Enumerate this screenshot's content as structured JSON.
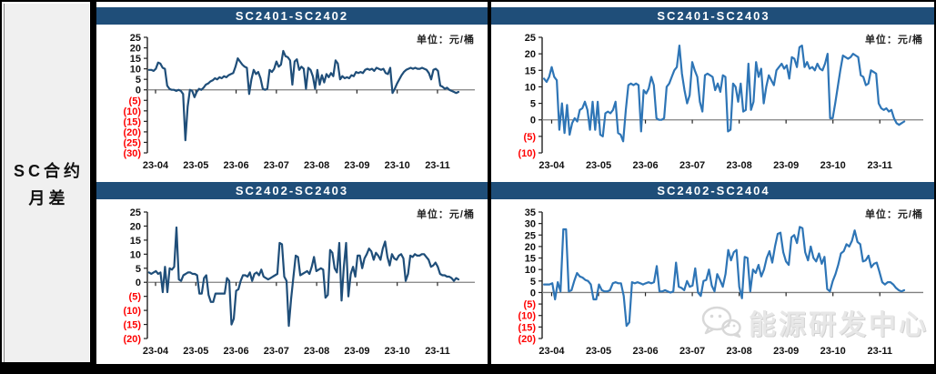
{
  "sidebar": {
    "line1": "SC合约",
    "line2": "月差"
  },
  "colors": {
    "header_bg": "#1F4E79",
    "dark_series": "#1F4E79",
    "light_series": "#2E75B6",
    "negative_label": "#FF0000",
    "zero_line": "#808080",
    "axis": "#222222",
    "sidebar_bg": "#F0F0F0",
    "frame": "#000000"
  },
  "watermark": {
    "icon": "wechat-icon",
    "text": "能源研发中心"
  },
  "chart_data": [
    {
      "type": "line",
      "title": "SC2401-SC2402",
      "unit": "单位：元/桶",
      "color": "#1F4E79",
      "ylim": [
        -30,
        25
      ],
      "y_step": 5,
      "grid": "zero-line-only",
      "legend": "none",
      "categories": [
        "23-04",
        "23-05",
        "23-06",
        "23-07",
        "23-08",
        "23-09",
        "23-10",
        "23-11"
      ],
      "values": [
        9.5,
        9.5,
        9,
        10,
        13,
        12.5,
        10.5,
        10,
        2,
        0.5,
        0,
        0,
        -0.5,
        0,
        -0.5,
        -2,
        -24,
        -8,
        0,
        -0.5,
        -3.5,
        -1,
        0.5,
        0,
        1,
        2.5,
        3,
        4,
        4.5,
        5.5,
        5,
        6,
        5.5,
        6.5,
        6,
        7,
        7.5,
        8,
        11,
        15,
        13.5,
        12,
        11,
        10.5,
        -2,
        5,
        9.5,
        7.5,
        8.5,
        5.5,
        0.5,
        0,
        0.5,
        9.5,
        8.5,
        10,
        13.5,
        11,
        12,
        18.5,
        16,
        15.5,
        14,
        2.5,
        13.5,
        14.5,
        9.5,
        11,
        10,
        0.5,
        10.5,
        9.5,
        6.5,
        0.5,
        9.5,
        2.5,
        7,
        3.5,
        7.5,
        6,
        8,
        6.5,
        14,
        12.5,
        5,
        6.5,
        5.5,
        6,
        5.5,
        7,
        6.5,
        8.5,
        8,
        8.5,
        8,
        9.5,
        10,
        9.5,
        10,
        9,
        10.5,
        10,
        9.5,
        10,
        8,
        7.5,
        10.5,
        -1.5,
        0.5,
        3,
        5,
        7,
        8.5,
        9.5,
        10,
        10.5,
        10,
        10.5,
        10,
        10,
        10.5,
        10,
        9.5,
        8,
        5,
        9.5,
        10,
        9,
        2,
        1.5,
        0.5,
        1,
        0,
        -0.5,
        -1,
        -1.5,
        -1
      ]
    },
    {
      "type": "line",
      "title": "SC2401-SC2403",
      "unit": "单位：元/桶",
      "color": "#2E75B6",
      "ylim": [
        -10,
        25
      ],
      "y_step": 5,
      "grid": "zero-line-only",
      "legend": "none",
      "categories": [
        "23-04",
        "23-05",
        "23-06",
        "23-07",
        "23-08",
        "23-09",
        "23-10",
        "23-11"
      ],
      "values": [
        12.5,
        11.5,
        13,
        16,
        13,
        12,
        -3,
        5,
        -4,
        4.5,
        -4.5,
        -1,
        0.5,
        -0.5,
        3,
        3.5,
        5.5,
        3,
        -3,
        5.5,
        -3,
        5.5,
        -4.5,
        -5,
        2,
        2.5,
        2,
        3,
        5.5,
        -4,
        -4.5,
        -6.5,
        3,
        10.5,
        11,
        10.5,
        11,
        10.5,
        -3.5,
        9,
        8,
        9.5,
        13,
        10.5,
        0.5,
        0,
        0,
        0.5,
        10,
        11,
        13,
        15,
        16,
        22.5,
        14,
        9,
        5,
        7.5,
        17.5,
        15,
        13,
        5.5,
        2.5,
        13.5,
        14,
        13.5,
        13,
        9,
        11,
        8.5,
        13.5,
        13,
        -3.5,
        -3,
        11,
        10,
        5.5,
        11,
        2.5,
        3,
        17,
        3,
        5.5,
        17.5,
        13,
        15.5,
        5,
        10,
        13.5,
        12,
        10.5,
        15,
        16,
        17,
        15.5,
        16.5,
        12.5,
        19,
        18.5,
        16,
        22,
        22.5,
        16,
        17.5,
        15.5,
        16,
        15,
        17,
        15.5,
        15,
        17,
        20,
        0.5,
        0.5,
        5,
        10,
        15,
        19.5,
        19,
        18.5,
        19,
        20,
        19.5,
        19,
        13.5,
        13,
        10.5,
        11,
        15,
        14.5,
        14,
        5,
        3.5,
        3,
        3.5,
        2.5,
        3,
        0.5,
        -1,
        -1.5,
        -1,
        -0.5
      ]
    },
    {
      "type": "line",
      "title": "SC2402-SC2403",
      "unit": "单位：元/桶",
      "color": "#1F4E79",
      "ylim": [
        -20,
        25
      ],
      "y_step": 5,
      "grid": "zero-line-only",
      "legend": "none",
      "categories": [
        "23-04",
        "23-05",
        "23-06",
        "23-07",
        "23-08",
        "23-09",
        "23-10",
        "23-11"
      ],
      "values": [
        3.5,
        3,
        3.5,
        4,
        3,
        3.5,
        -3.5,
        5.5,
        -3.5,
        5,
        4.5,
        5.5,
        19.5,
        1,
        0.5,
        2.5,
        3,
        3.5,
        3.5,
        3,
        3,
        2.5,
        -4,
        -4,
        1.5,
        2.5,
        -4.5,
        -7,
        -7,
        -4,
        -4,
        -4,
        -4,
        -4,
        1.5,
        0.5,
        -15,
        -13,
        -3,
        -2.5,
        0.5,
        2.5,
        2.5,
        2,
        3.5,
        0.5,
        3,
        3.5,
        2.5,
        4.5,
        2,
        1.5,
        1,
        1.5,
        2,
        2.5,
        3,
        14,
        13.5,
        2,
        0.5,
        -15.5,
        -6,
        2,
        9.5,
        9,
        2.5,
        3,
        3.5,
        4,
        3,
        5.5,
        9,
        4,
        4.5,
        5,
        4.5,
        -5.5,
        -4.5,
        11.5,
        10.5,
        5,
        3.5,
        14,
        -6.5,
        5.5,
        14,
        -5,
        3,
        5.5,
        2,
        9.5,
        9.5,
        5,
        8.5,
        10,
        12,
        11,
        8,
        10.5,
        9.5,
        8,
        12,
        14.5,
        9,
        6,
        10,
        8.5,
        8,
        9.5,
        10,
        8.5,
        0.5,
        3,
        9.5,
        9,
        10,
        9.5,
        9.5,
        10,
        10,
        9,
        8,
        5.5,
        6,
        7,
        5.5,
        3,
        2.5,
        2.5,
        2,
        2,
        1.5,
        0.5,
        1.5,
        1
      ]
    },
    {
      "type": "line",
      "title": "SC2402-SC2404",
      "unit": "单位：元/桶",
      "color": "#2E75B6",
      "ylim": [
        -20,
        35
      ],
      "y_step": 5,
      "grid": "zero-line-only",
      "legend": "none",
      "categories": [
        "23-04",
        "23-05",
        "23-06",
        "23-07",
        "23-08",
        "23-09",
        "23-10",
        "23-11"
      ],
      "values": [
        3.5,
        3.5,
        3.5,
        4,
        -3,
        4.5,
        0.5,
        27.5,
        27.5,
        0.5,
        1,
        5,
        8.5,
        7,
        6.5,
        5.5,
        5,
        3.5,
        -3,
        -3,
        3.5,
        1,
        0.5,
        0.5,
        1,
        4,
        4.5,
        4,
        4,
        -1.5,
        -14.5,
        -13,
        4.5,
        4,
        4.5,
        4,
        3.5,
        4,
        4.5,
        4,
        4.5,
        11.5,
        0.5,
        0.5,
        1,
        0.5,
        0,
        0.5,
        13,
        2.5,
        2,
        1,
        5,
        2.5,
        3,
        10.5,
        0,
        -1.5,
        5,
        5.5,
        10,
        3,
        0.5,
        8,
        5.5,
        2.5,
        8,
        18.5,
        14,
        17.5,
        18.5,
        2.5,
        -2.5,
        15.5,
        15,
        0.5,
        10,
        8.5,
        12,
        7,
        10,
        15,
        18,
        13,
        20,
        25.5,
        26,
        17.5,
        13.5,
        12,
        24,
        25,
        21.5,
        28.5,
        28,
        17.5,
        14,
        20,
        15,
        13.5,
        17,
        12.5,
        15.5,
        1.5,
        0.5,
        5,
        8,
        12,
        17,
        18,
        21,
        20,
        22.5,
        27,
        22,
        21,
        13.5,
        14,
        16,
        11,
        12.5,
        13,
        9,
        4.5,
        3.5,
        4.5,
        4.5,
        3.5,
        2,
        1,
        0.5,
        1
      ]
    }
  ]
}
